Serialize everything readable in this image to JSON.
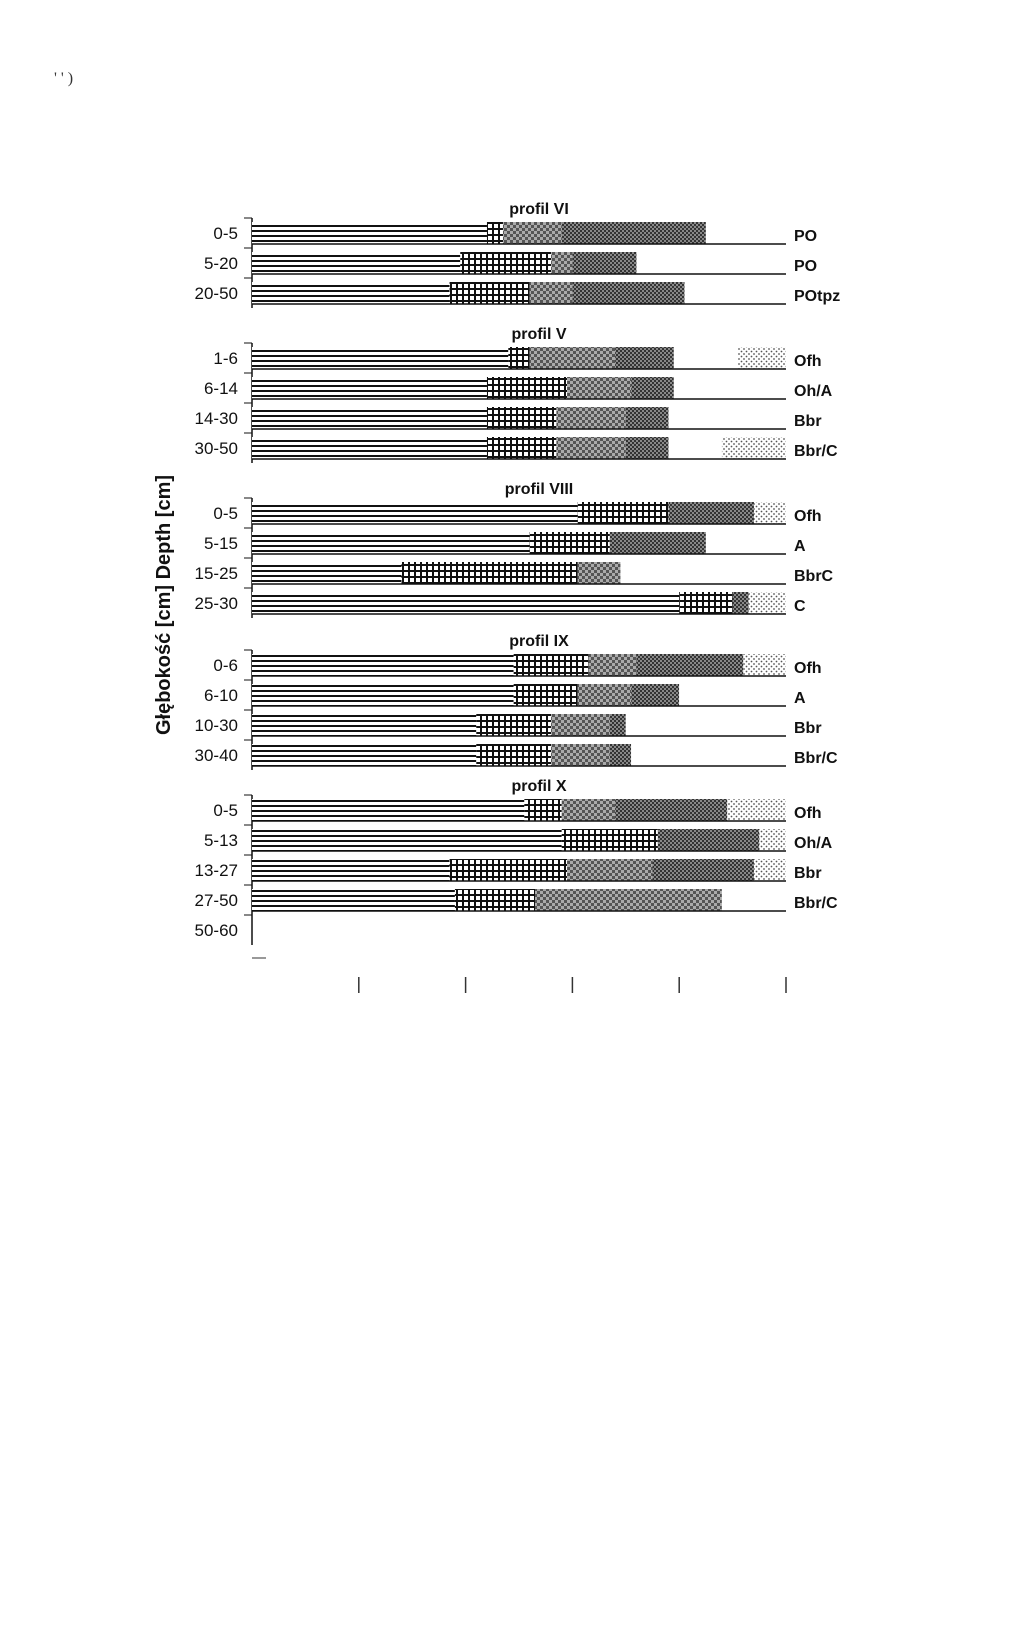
{
  "corner_mark": "' ' )",
  "chart_data": {
    "type": "bar",
    "orientation": "horizontal",
    "stacked": true,
    "ylabel": "Głębokość [cm] Depth [cm]",
    "xlabel": "",
    "xlim": [
      0,
      100
    ],
    "x_ticks": [
      20,
      40,
      60,
      80,
      100
    ],
    "fill_patterns": [
      "horizontal-lines",
      "fine-grid",
      "checkered-grey",
      "dark-dots",
      "white",
      "light-dots"
    ],
    "panels": [
      {
        "title": "profil VI",
        "rows": [
          {
            "depth": "0-5",
            "horizon": "PO",
            "segments": [
              44,
              3,
              11,
              27,
              15,
              0
            ]
          },
          {
            "depth": "5-20",
            "horizon": "PO",
            "segments": [
              39,
              17,
              4,
              12,
              28,
              0
            ]
          },
          {
            "depth": "20-50",
            "horizon": "POtpz",
            "segments": [
              37,
              15,
              8,
              21,
              19,
              0
            ]
          }
        ]
      },
      {
        "title": "profil V",
        "rows": [
          {
            "depth": "1-6",
            "horizon": "Ofh",
            "segments": [
              48,
              4,
              16,
              11,
              12,
              9
            ]
          },
          {
            "depth": "6-14",
            "horizon": "Oh/A",
            "segments": [
              44,
              15,
              12,
              8,
              21,
              0
            ]
          },
          {
            "depth": "14-30",
            "horizon": "Bbr",
            "segments": [
              44,
              13,
              13,
              8,
              22,
              0
            ]
          },
          {
            "depth": "30-50",
            "horizon": "Bbr/C",
            "segments": [
              44,
              13,
              13,
              8,
              10,
              12
            ]
          }
        ]
      },
      {
        "title": "profil VIII",
        "rows": [
          {
            "depth": "0-5",
            "horizon": "Ofh",
            "segments": [
              61,
              17,
              0,
              16,
              0,
              6
            ]
          },
          {
            "depth": "5-15",
            "horizon": "A",
            "segments": [
              52,
              15,
              0,
              18,
              15,
              0
            ]
          },
          {
            "depth": "15-25",
            "horizon": "BbrC",
            "segments": [
              28,
              33,
              8,
              0,
              31,
              0
            ]
          },
          {
            "depth": "25-30",
            "horizon": "C",
            "segments": [
              80,
              10,
              0,
              3,
              0,
              7
            ]
          }
        ]
      },
      {
        "title": "profil IX",
        "rows": [
          {
            "depth": "0-6",
            "horizon": "Ofh",
            "segments": [
              49,
              14,
              9,
              20,
              0,
              8
            ]
          },
          {
            "depth": "6-10",
            "horizon": "A",
            "segments": [
              49,
              12,
              10,
              9,
              20,
              0
            ]
          },
          {
            "depth": "10-30",
            "horizon": "Bbr",
            "segments": [
              42,
              14,
              11,
              3,
              30,
              0
            ]
          },
          {
            "depth": "30-40",
            "horizon": "Bbr/C",
            "segments": [
              42,
              14,
              11,
              4,
              29,
              0
            ]
          }
        ]
      },
      {
        "title": "profil X",
        "rows": [
          {
            "depth": "0-5",
            "horizon": "Ofh",
            "segments": [
              51,
              7,
              10,
              21,
              0,
              11
            ]
          },
          {
            "depth": "5-13",
            "horizon": "Oh/A",
            "segments": [
              58,
              18,
              0,
              19,
              0,
              5
            ]
          },
          {
            "depth": "13-27",
            "horizon": "Bbr",
            "segments": [
              37,
              22,
              16,
              19,
              0,
              6
            ]
          },
          {
            "depth": "27-50",
            "horizon": "Bbr/C",
            "segments": [
              38,
              15,
              35,
              0,
              12,
              0
            ]
          },
          {
            "depth": "50-60",
            "horizon": "",
            "segments": [
              0,
              0,
              0,
              0,
              0,
              0
            ]
          }
        ]
      }
    ]
  }
}
